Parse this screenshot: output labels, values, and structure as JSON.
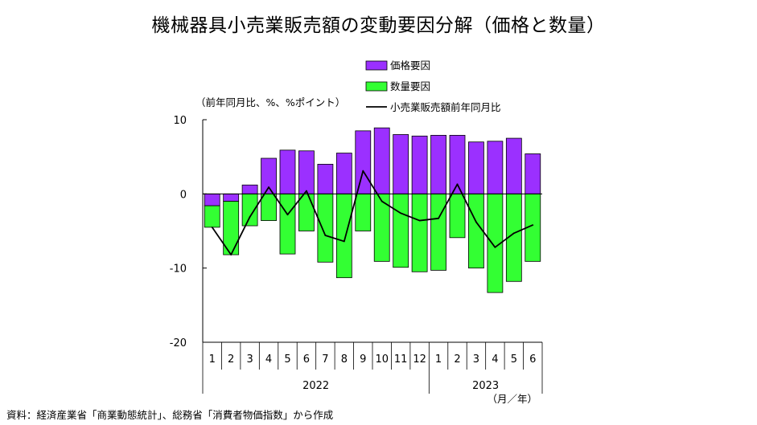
{
  "title": "機械器具小売業販売額の変動要因分解（価格と数量）",
  "source": "資料：経済産業省「商業動態統計」、総務省「消費者物価指数」から作成",
  "chart_data": {
    "type": "bar",
    "stacked": true,
    "unit_label": "（前年同月比、%、%ポイント）",
    "period_label": "（月／年）",
    "categories": [
      "1",
      "2",
      "3",
      "4",
      "5",
      "6",
      "7",
      "8",
      "9",
      "10",
      "11",
      "12",
      "1",
      "2",
      "3",
      "4",
      "5",
      "6"
    ],
    "year_groups": [
      {
        "label": "2022",
        "count": 12
      },
      {
        "label": "2023",
        "count": 6
      }
    ],
    "ylim": [
      -20,
      10
    ],
    "yticks": [
      10,
      0,
      -10,
      -20
    ],
    "series": [
      {
        "name": "価格要因",
        "kind": "bar",
        "color": "#9b30ff",
        "values": [
          -1.6,
          -1.0,
          1.2,
          4.8,
          5.9,
          5.8,
          4.0,
          5.5,
          8.5,
          8.9,
          8.0,
          7.8,
          7.9,
          7.9,
          7.0,
          7.1,
          7.5,
          5.4
        ]
      },
      {
        "name": "数量要因",
        "kind": "bar",
        "color": "#33ff33",
        "values": [
          -2.9,
          -7.2,
          -4.3,
          -3.6,
          -8.1,
          -5.0,
          -9.2,
          -11.3,
          -5.0,
          -9.1,
          -9.9,
          -10.5,
          -10.3,
          -5.9,
          -10.0,
          -13.3,
          -11.8,
          -9.1
        ]
      },
      {
        "name": "小売業販売額前年同月比",
        "kind": "line",
        "color": "#000000",
        "values": [
          -4.5,
          -8.2,
          -3.1,
          0.9,
          -2.8,
          0.4,
          -5.6,
          -6.4,
          3.1,
          -1.0,
          -2.6,
          -3.6,
          -3.3,
          1.3,
          -3.8,
          -7.2,
          -5.3,
          -4.2
        ]
      }
    ],
    "legend_placement": "top-center",
    "grid": false
  }
}
